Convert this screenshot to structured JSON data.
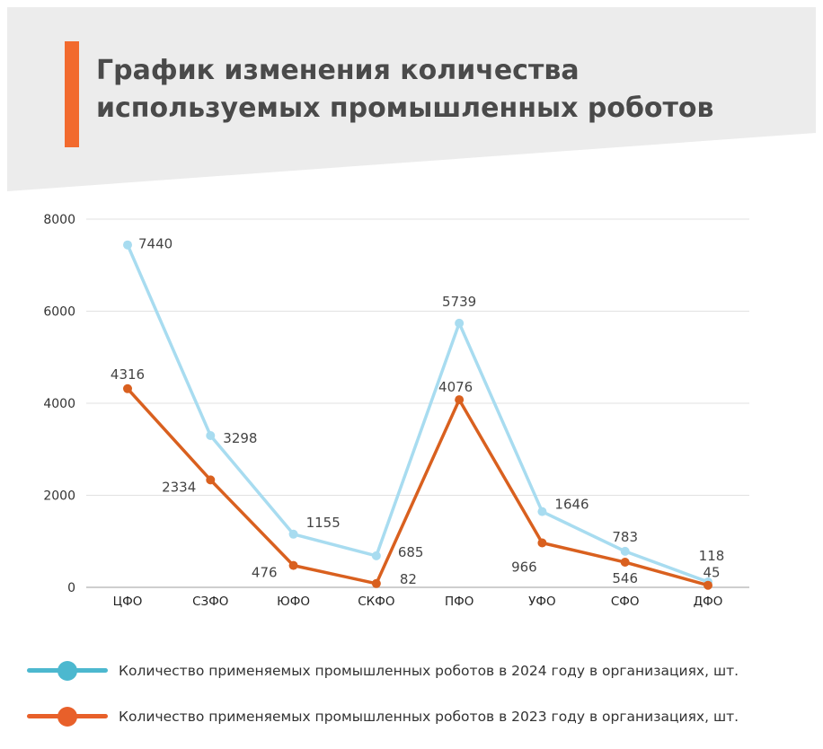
{
  "title": "График изменения количества используемых промышленных роботов",
  "colors": {
    "accent": "#f26a2e",
    "header_bg": "#ececec",
    "series_2024": "#a8dcf0",
    "series_2024_legend": "#4cb8cf",
    "series_2023": "#d9601f",
    "series_2023_legend": "#e8602a",
    "grid": "#e2e2e2",
    "text": "#444444"
  },
  "legend": [
    {
      "label": "Количество применяемых промышленных роботов в 2024 году в организациях, шт.",
      "color": "#4cb8cf"
    },
    {
      "label": "Количество применяемых промышленных роботов в 2023 году в организациях, шт.",
      "color": "#e8602a"
    }
  ],
  "chart_data": {
    "type": "line",
    "categories": [
      "ЦФО",
      "СЗФО",
      "ЮФО",
      "СКФО",
      "ПФО",
      "УФО",
      "СФО",
      "ДФО"
    ],
    "series": [
      {
        "name": "Количество применяемых промышленных роботов в 2024 году в организациях, шт.",
        "values": [
          7440,
          3298,
          1155,
          685,
          5739,
          1646,
          783,
          118
        ],
        "color": "#a8dcf0"
      },
      {
        "name": "Количество применяемых промышленных роботов в 2023 году в организациях, шт.",
        "values": [
          4316,
          2334,
          476,
          82,
          4076,
          966,
          546,
          45
        ],
        "color": "#d9601f"
      }
    ],
    "yticks": [
      0,
      2000,
      4000,
      6000,
      8000
    ],
    "ylim": [
      0,
      8000
    ],
    "grid": true,
    "legend_position": "bottom"
  }
}
